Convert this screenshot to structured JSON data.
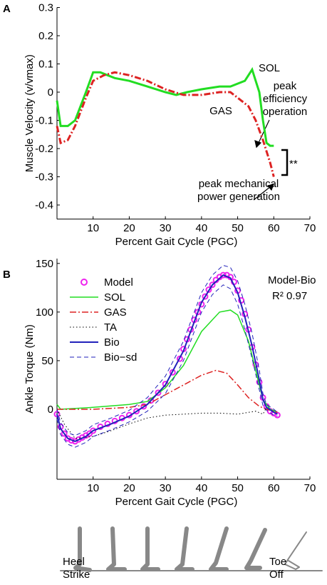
{
  "chart_data": [
    {
      "type": "line",
      "panel": "A",
      "xlabel": "Percent Gait Cycle (PGC)",
      "ylabel": "Muscle Velocity (v/vmax)",
      "xlim": [
        0,
        70
      ],
      "xticks": [
        10,
        20,
        30,
        40,
        50,
        60,
        70
      ],
      "ylim": [
        -0.45,
        0.3
      ],
      "yticks": [
        -0.4,
        -0.3,
        -0.2,
        -0.1,
        0,
        0.1,
        0.2,
        0.3
      ],
      "grid": false,
      "series": [
        {
          "name": "SOL",
          "color": "#22dd22",
          "style": "solid",
          "width": 3,
          "x": [
            0,
            1,
            3,
            5,
            8,
            10,
            12,
            14,
            16,
            20,
            25,
            30,
            33,
            36,
            40,
            45,
            48,
            52,
            54,
            55,
            56,
            57,
            58,
            59,
            60
          ],
          "values": [
            -0.03,
            -0.12,
            -0.12,
            -0.1,
            0,
            0.07,
            0.07,
            0.06,
            0.05,
            0.04,
            0.02,
            0,
            -0.01,
            0,
            0.01,
            0.02,
            0.02,
            0.04,
            0.08,
            0.04,
            0,
            -0.1,
            -0.18,
            -0.19,
            -0.19
          ]
        },
        {
          "name": "GAS",
          "color": "#dd2222",
          "style": "dashdot",
          "width": 3,
          "x": [
            0,
            1,
            3,
            5,
            8,
            10,
            13,
            16,
            20,
            25,
            30,
            35,
            40,
            45,
            48,
            50,
            53,
            55,
            57,
            59,
            60
          ],
          "values": [
            -0.12,
            -0.18,
            -0.17,
            -0.12,
            -0.02,
            0.04,
            0.06,
            0.07,
            0.06,
            0.04,
            0.01,
            -0.01,
            -0.01,
            0,
            0,
            -0.02,
            -0.05,
            -0.1,
            -0.17,
            -0.25,
            -0.3
          ]
        }
      ],
      "annotations": [
        [
          "SOL"
        ],
        [
          "GAS"
        ],
        [
          "peak",
          "efficiency",
          "operation"
        ],
        [
          "peak mechanical",
          "power generation"
        ],
        [
          "**"
        ]
      ]
    },
    {
      "type": "line",
      "panel": "B",
      "xlabel": "Percent Gait Cycle (PGC)",
      "ylabel": "Ankle Torque (Nm)",
      "xlim": [
        0,
        70
      ],
      "xticks": [
        10,
        20,
        30,
        40,
        50,
        60,
        70
      ],
      "ylim": [
        -72,
        155
      ],
      "yticks": [
        0,
        50,
        100,
        150
      ],
      "grid": false,
      "legend": "upper left",
      "series": [
        {
          "name": "Model",
          "color": "#ee22ee",
          "style": "markers",
          "x": [
            0,
            1,
            2,
            3,
            4,
            5,
            6,
            7,
            8,
            9,
            10,
            12,
            14,
            16,
            18,
            20,
            22,
            24,
            26,
            28,
            30,
            32,
            34,
            35,
            36,
            37,
            38,
            39,
            40,
            41,
            42,
            43,
            44,
            45,
            46,
            47,
            48,
            49,
            50,
            51,
            52,
            53,
            54,
            55,
            56,
            57,
            58,
            59,
            60,
            61
          ],
          "values": [
            -5,
            -18,
            -25,
            -30,
            -32,
            -33,
            -31,
            -29,
            -27,
            -25,
            -22,
            -18,
            -15,
            -12,
            -9,
            -6,
            -2,
            3,
            9,
            17,
            26,
            38,
            52,
            62,
            72,
            82,
            92,
            100,
            108,
            116,
            123,
            128,
            133,
            136,
            138,
            138,
            136,
            131,
            122,
            112,
            98,
            82,
            64,
            46,
            28,
            12,
            3,
            -2,
            -4,
            -6
          ]
        },
        {
          "name": "SOL",
          "color": "#22dd22",
          "style": "solid",
          "width": 1.5,
          "x": [
            0,
            1,
            10,
            20,
            25,
            30,
            35,
            40,
            45,
            48,
            50,
            53,
            55,
            57,
            59,
            61
          ],
          "values": [
            5,
            0,
            2,
            5,
            8,
            22,
            45,
            80,
            100,
            102,
            97,
            70,
            40,
            10,
            0,
            -3
          ]
        },
        {
          "name": "GAS",
          "color": "#dd2222",
          "style": "dashdot",
          "width": 1.5,
          "x": [
            0,
            10,
            20,
            25,
            30,
            35,
            40,
            44,
            47,
            50,
            53,
            56,
            58,
            61
          ],
          "values": [
            0,
            0,
            2,
            5,
            15,
            25,
            35,
            40,
            37,
            25,
            12,
            3,
            0,
            -3
          ]
        },
        {
          "name": "TA",
          "color": "#000000",
          "style": "dotted",
          "width": 1,
          "x": [
            0,
            2,
            5,
            10,
            15,
            20,
            25,
            30,
            40,
            45,
            50,
            55,
            57,
            58,
            60,
            61
          ],
          "values": [
            0,
            -15,
            -30,
            -28,
            -22,
            -15,
            -9,
            -6,
            -4,
            -4,
            -5,
            -2,
            -5,
            2,
            -3,
            -5
          ]
        },
        {
          "name": "Bio",
          "color": "#2222bb",
          "style": "solid",
          "width": 2,
          "x": [
            0,
            1,
            3,
            5,
            8,
            10,
            15,
            20,
            25,
            30,
            35,
            38,
            40,
            43,
            46,
            48,
            50,
            52,
            54,
            56,
            57,
            58,
            60,
            61
          ],
          "values": [
            -5,
            -20,
            -30,
            -33,
            -28,
            -22,
            -15,
            -7,
            5,
            25,
            60,
            90,
            110,
            128,
            138,
            135,
            120,
            95,
            65,
            30,
            10,
            2,
            -3,
            -5
          ]
        },
        {
          "name": "Bio−sd",
          "color": "#2222bb",
          "style": "dashed",
          "width": 1,
          "x": [
            0,
            1,
            3,
            5,
            8,
            10,
            15,
            20,
            25,
            30,
            35,
            38,
            40,
            43,
            46,
            48,
            50,
            52,
            54,
            56,
            57,
            58,
            60,
            61
          ],
          "values": [
            0,
            -14,
            -24,
            -27,
            -22,
            -16,
            -9,
            -1,
            12,
            34,
            70,
            100,
            120,
            138,
            148,
            146,
            132,
            108,
            78,
            40,
            16,
            5,
            0,
            -3
          ],
          "lower": [
            -10,
            -26,
            -36,
            -39,
            -34,
            -28,
            -21,
            -13,
            -2,
            16,
            50,
            80,
            100,
            118,
            128,
            124,
            108,
            82,
            52,
            20,
            4,
            -1,
            -6,
            -7
          ]
        }
      ],
      "annotations": [
        [
          "Model-Bio"
        ],
        [
          "R² 0.97"
        ]
      ]
    }
  ],
  "phases": [
    [
      "Heel",
      "Strike"
    ],
    [
      "Toe",
      "Off"
    ]
  ]
}
